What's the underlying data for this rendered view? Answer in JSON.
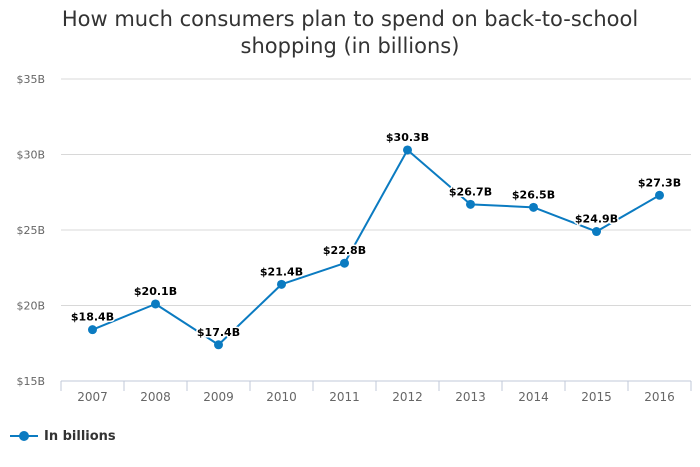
{
  "chart_data": {
    "type": "line",
    "title_lines": [
      "How much consumers plan to spend on back-to-school",
      "shopping (in billions)"
    ],
    "categories": [
      "2007",
      "2008",
      "2009",
      "2010",
      "2011",
      "2012",
      "2013",
      "2014",
      "2015",
      "2016"
    ],
    "series": [
      {
        "name": "In billions",
        "values": [
          18.4,
          20.1,
          17.4,
          21.4,
          22.8,
          30.3,
          26.7,
          26.5,
          24.9,
          27.3
        ],
        "data_labels": [
          "$18.4B",
          "$20.1B",
          "$17.4B",
          "$21.4B",
          "$22.8B",
          "$30.3B",
          "$26.7B",
          "$26.5B",
          "$24.9B",
          "$27.3B"
        ],
        "color": "#0b7bc1"
      }
    ],
    "yticks": [
      15,
      20,
      25,
      30,
      35
    ],
    "ytick_labels": [
      "$15B",
      "$20B",
      "$25B",
      "$30B",
      "$35B"
    ],
    "ylim": [
      15,
      35
    ],
    "grid": true,
    "legend_position": "bottom-left"
  }
}
